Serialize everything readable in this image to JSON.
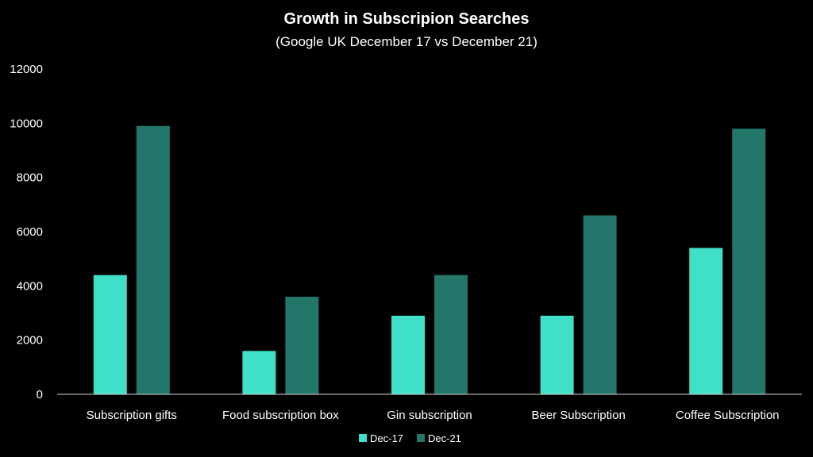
{
  "chart_data": {
    "type": "bar",
    "title": "Growth in Subscripion Searches",
    "subtitle": "(Google UK December 17 vs December 21)",
    "xlabel": "",
    "ylabel": "",
    "categories": [
      "Subscription gifts",
      "Food subscription box",
      "Gin subscription",
      "Beer Subscription",
      "Coffee Subscription"
    ],
    "series": [
      {
        "name": "Dec-17",
        "color": "#40e0c8",
        "values": [
          4400,
          1600,
          2900,
          2900,
          5400
        ]
      },
      {
        "name": "Dec-21",
        "color": "#22766a",
        "values": [
          9900,
          3600,
          4400,
          6600,
          9800
        ]
      }
    ],
    "ylim": [
      0,
      12000
    ],
    "yticks": [
      0,
      2000,
      4000,
      6000,
      8000,
      10000,
      12000
    ],
    "grid": false,
    "legend_position": "bottom"
  }
}
